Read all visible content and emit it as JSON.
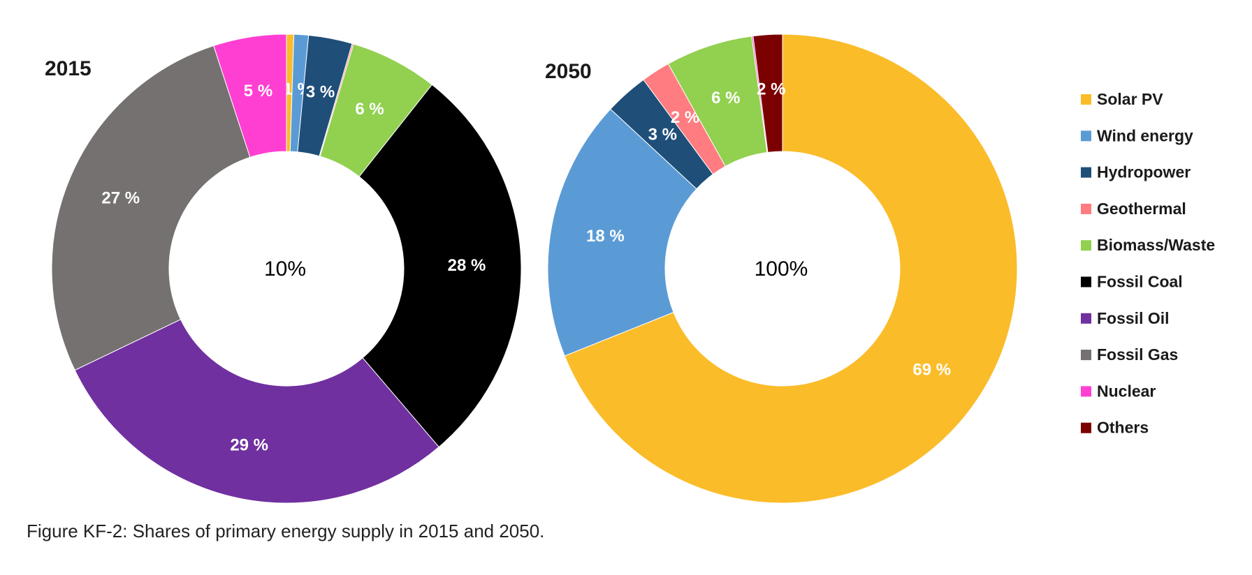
{
  "caption": "Figure KF-2: Shares of primary energy supply in 2015 and 2050.",
  "chart_data": [
    {
      "type": "pie",
      "variant": "donut",
      "title": "2015",
      "center_label": "10%",
      "slices": [
        {
          "category": "Solar PV",
          "value": 0.5,
          "color": "#FBBC2A",
          "label": ""
        },
        {
          "category": "Wind energy",
          "value": 1,
          "color": "#5B9BD5",
          "label": "1 %"
        },
        {
          "category": "Hydropower",
          "value": 3,
          "color": "#1F4E79",
          "label": "3 %"
        },
        {
          "category": "Geothermal",
          "value": 0.1,
          "color": "#FF7C80",
          "label": ""
        },
        {
          "category": "Biomass/Waste",
          "value": 6,
          "color": "#92D050",
          "label": "6 %"
        },
        {
          "category": "Fossil Coal",
          "value": 28,
          "color": "#000000",
          "label": "28 %"
        },
        {
          "category": "Fossil Oil",
          "value": 29,
          "color": "#7030A0",
          "label": "29 %"
        },
        {
          "category": "Fossil Gas",
          "value": 27,
          "color": "#767171",
          "label": "27 %"
        },
        {
          "category": "Nuclear",
          "value": 5,
          "color": "#FF3FD2",
          "label": "5 %"
        },
        {
          "category": "Others",
          "value": 0,
          "color": "#7B0000",
          "label": ""
        }
      ]
    },
    {
      "type": "pie",
      "variant": "donut",
      "title": "2050",
      "center_label": "100%",
      "slices": [
        {
          "category": "Solar PV",
          "value": 69,
          "color": "#FBBC2A",
          "label": "69 %"
        },
        {
          "category": "Wind energy",
          "value": 18,
          "color": "#5B9BD5",
          "label": "18 %"
        },
        {
          "category": "Hydropower",
          "value": 3,
          "color": "#1F4E79",
          "label": "3 %"
        },
        {
          "category": "Geothermal",
          "value": 2,
          "color": "#FF7C80",
          "label": "2 %"
        },
        {
          "category": "Biomass/Waste",
          "value": 6,
          "color": "#92D050",
          "label": "6 %"
        },
        {
          "category": "Fossil Coal",
          "value": 0,
          "color": "#000000",
          "label": ""
        },
        {
          "category": "Fossil Oil",
          "value": 0,
          "color": "#7030A0",
          "label": ""
        },
        {
          "category": "Fossil Gas",
          "value": 0,
          "color": "#767171",
          "label": ""
        },
        {
          "category": "Nuclear",
          "value": 0.1,
          "color": "#FF3FD2",
          "label": ""
        },
        {
          "category": "Others",
          "value": 2,
          "color": "#7B0000",
          "label": "2 %"
        }
      ]
    }
  ],
  "legend": {
    "placement": "right",
    "items": [
      {
        "label": "Solar PV",
        "color": "#FBBC2A"
      },
      {
        "label": "Wind energy",
        "color": "#5B9BD5"
      },
      {
        "label": "Hydropower",
        "color": "#1F4E79"
      },
      {
        "label": "Geothermal",
        "color": "#FF7C80"
      },
      {
        "label": "Biomass/Waste",
        "color": "#92D050"
      },
      {
        "label": "Fossil Coal",
        "color": "#000000"
      },
      {
        "label": "Fossil Oil",
        "color": "#7030A0"
      },
      {
        "label": "Fossil Gas",
        "color": "#767171"
      },
      {
        "label": "Nuclear",
        "color": "#FF3FD2"
      },
      {
        "label": "Others",
        "color": "#7B0000"
      }
    ]
  }
}
